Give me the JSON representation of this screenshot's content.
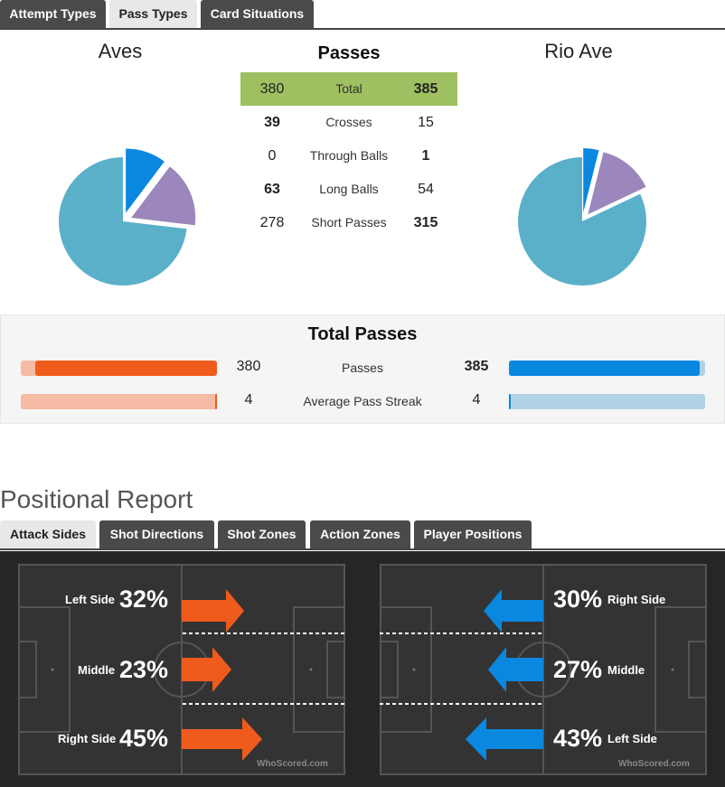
{
  "top_tabs": [
    {
      "label": "Attempt Types",
      "active": false
    },
    {
      "label": "Pass Types",
      "active": true
    },
    {
      "label": "Card Situations",
      "active": false
    }
  ],
  "teams": {
    "home": "Aves",
    "away": "Rio Ave"
  },
  "passes": {
    "title": "Passes",
    "rows": [
      {
        "label": "Total",
        "home": "380",
        "away": "385"
      },
      {
        "label": "Crosses",
        "home": "39",
        "away": "15"
      },
      {
        "label": "Through Balls",
        "home": "0",
        "away": "1"
      },
      {
        "label": "Long Balls",
        "home": "63",
        "away": "54"
      },
      {
        "label": "Short Passes",
        "home": "278",
        "away": "315"
      }
    ]
  },
  "pie_colors": {
    "crosses": "#0a87df",
    "long_balls": "#9b87bb",
    "short_passes": "#5ab0c9"
  },
  "total_passes": {
    "title": "Total Passes",
    "rows": [
      {
        "label": "Passes",
        "home": "380",
        "away": "385",
        "home_share": 0.497,
        "away_share": 0.503
      },
      {
        "label": "Average Pass Streak",
        "home": "4",
        "away": "4",
        "home_share": 0.5,
        "away_share": 0.5
      }
    ],
    "colors": {
      "home": "#ef5b1d",
      "home_light": "#f6bba5",
      "away": "#0a87df",
      "away_light": "#b0d4e5"
    }
  },
  "positional": {
    "title": "Positional Report",
    "tabs": [
      {
        "label": "Attack Sides",
        "active": true
      },
      {
        "label": "Shot Directions",
        "active": false
      },
      {
        "label": "Shot Zones",
        "active": false
      },
      {
        "label": "Action Zones",
        "active": false
      },
      {
        "label": "Player Positions",
        "active": false
      }
    ],
    "home": [
      {
        "label": "Left Side",
        "pct": "32%"
      },
      {
        "label": "Middle",
        "pct": "23%"
      },
      {
        "label": "Right Side",
        "pct": "45%"
      }
    ],
    "away": [
      {
        "label": "Right Side",
        "pct": "30%"
      },
      {
        "label": "Middle",
        "pct": "27%"
      },
      {
        "label": "Left Side",
        "pct": "43%"
      }
    ],
    "watermark": "WhoScored.com"
  }
}
